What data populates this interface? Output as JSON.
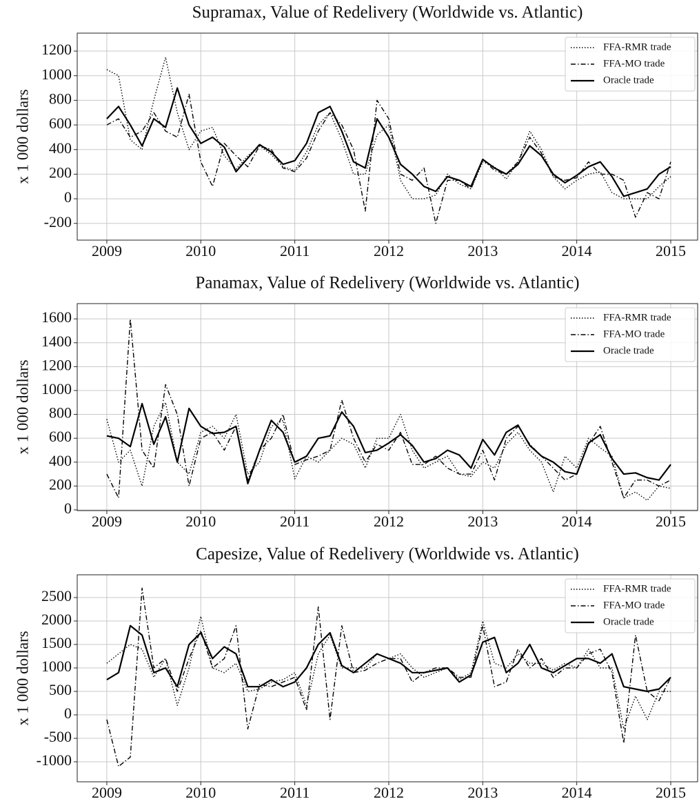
{
  "chart_data": [
    {
      "type": "line",
      "title": "Supramax, Value of Redelivery (Worldwide vs. Atlantic)",
      "y_label": "x 1 000 dollars",
      "x": [
        2009,
        2009.125,
        2009.25,
        2009.375,
        2009.5,
        2009.625,
        2009.75,
        2009.875,
        2010,
        2010.125,
        2010.25,
        2010.375,
        2010.5,
        2010.625,
        2010.75,
        2010.875,
        2011,
        2011.125,
        2011.25,
        2011.375,
        2011.5,
        2011.625,
        2011.75,
        2011.875,
        2012,
        2012.125,
        2012.25,
        2012.375,
        2012.5,
        2012.625,
        2012.75,
        2012.875,
        2013,
        2013.125,
        2013.25,
        2013.375,
        2013.5,
        2013.625,
        2013.75,
        2013.875,
        2014,
        2014.125,
        2014.25,
        2014.375,
        2014.5,
        2014.625,
        2014.75,
        2014.875,
        2015
      ],
      "series": [
        {
          "name": "FFA-RMR trade",
          "color": "#000000",
          "dash": "dotted",
          "values": [
            1050,
            1000,
            480,
            400,
            800,
            1150,
            700,
            400,
            550,
            580,
            350,
            240,
            350,
            430,
            360,
            260,
            230,
            380,
            600,
            700,
            480,
            200,
            200,
            520,
            600,
            150,
            0,
            0,
            30,
            200,
            120,
            80,
            300,
            260,
            160,
            300,
            550,
            400,
            180,
            80,
            150,
            200,
            220,
            50,
            0,
            0,
            0,
            100,
            180
          ]
        },
        {
          "name": "FFA-MO trade",
          "color": "#000000",
          "dash": "dashdot",
          "values": [
            600,
            650,
            500,
            550,
            700,
            550,
            500,
            850,
            300,
            100,
            450,
            350,
            260,
            430,
            400,
            250,
            220,
            330,
            550,
            700,
            600,
            400,
            -100,
            800,
            650,
            200,
            150,
            250,
            -200,
            150,
            150,
            80,
            320,
            230,
            200,
            300,
            500,
            370,
            180,
            150,
            170,
            300,
            200,
            200,
            150,
            -150,
            50,
            0,
            300
          ]
        },
        {
          "name": "Oracle trade",
          "color": "#000000",
          "dash": "solid",
          "values": [
            650,
            750,
            600,
            430,
            650,
            580,
            900,
            600,
            450,
            500,
            420,
            220,
            330,
            440,
            380,
            280,
            310,
            450,
            700,
            750,
            550,
            300,
            250,
            650,
            500,
            280,
            200,
            100,
            60,
            180,
            150,
            100,
            320,
            250,
            200,
            280,
            430,
            350,
            200,
            130,
            190,
            260,
            300,
            180,
            20,
            50,
            80,
            200,
            260
          ]
        }
      ],
      "xlim": [
        2008.685,
        2015.286
      ],
      "xticks": [
        2009,
        2010,
        2011,
        2012,
        2013,
        2014,
        2015
      ],
      "ylim": [
        -336,
        1346
      ],
      "yticks": [
        -200,
        0,
        200,
        400,
        600,
        800,
        1000,
        1200
      ],
      "grid": true,
      "legend": "upper-right"
    },
    {
      "type": "line",
      "title": "Panamax, Value of Redelivery (Worldwide vs. Atlantic)",
      "y_label": "x 1 000 dollars",
      "x": [
        2009,
        2009.125,
        2009.25,
        2009.375,
        2009.5,
        2009.625,
        2009.75,
        2009.875,
        2010,
        2010.125,
        2010.25,
        2010.375,
        2010.5,
        2010.625,
        2010.75,
        2010.875,
        2011,
        2011.125,
        2011.25,
        2011.375,
        2011.5,
        2011.625,
        2011.75,
        2011.875,
        2012,
        2012.125,
        2012.25,
        2012.375,
        2012.5,
        2012.625,
        2012.75,
        2012.875,
        2013,
        2013.125,
        2013.25,
        2013.375,
        2013.5,
        2013.625,
        2013.75,
        2013.875,
        2014,
        2014.125,
        2014.25,
        2014.375,
        2014.5,
        2014.625,
        2014.75,
        2014.875,
        2015
      ],
      "series": [
        {
          "name": "FFA-RMR trade",
          "color": "#000000",
          "dash": "dotted",
          "values": [
            760,
            400,
            500,
            200,
            700,
            900,
            400,
            300,
            650,
            700,
            600,
            800,
            300,
            400,
            700,
            750,
            260,
            450,
            400,
            500,
            600,
            550,
            350,
            600,
            600,
            800,
            500,
            350,
            400,
            450,
            300,
            280,
            400,
            350,
            550,
            650,
            500,
            400,
            150,
            450,
            350,
            600,
            520,
            450,
            100,
            150,
            80,
            200,
            180
          ]
        },
        {
          "name": "FFA-MO trade",
          "color": "#000000",
          "dash": "dashdot",
          "values": [
            300,
            100,
            1600,
            500,
            350,
            1050,
            800,
            200,
            600,
            650,
            500,
            700,
            250,
            500,
            600,
            800,
            380,
            420,
            450,
            500,
            920,
            600,
            400,
            550,
            500,
            650,
            380,
            380,
            450,
            350,
            300,
            300,
            500,
            250,
            600,
            700,
            550,
            450,
            350,
            250,
            300,
            550,
            700,
            400,
            100,
            250,
            250,
            200,
            250
          ]
        },
        {
          "name": "Oracle trade",
          "color": "#000000",
          "dash": "solid",
          "values": [
            620,
            600,
            530,
            890,
            550,
            780,
            400,
            850,
            700,
            640,
            650,
            700,
            220,
            500,
            750,
            650,
            400,
            450,
            600,
            620,
            820,
            700,
            480,
            500,
            560,
            630,
            540,
            400,
            430,
            500,
            460,
            350,
            590,
            460,
            650,
            710,
            540,
            450,
            400,
            320,
            300,
            560,
            630,
            430,
            300,
            310,
            270,
            250,
            380
          ]
        }
      ],
      "xlim": [
        2008.685,
        2015.286
      ],
      "xticks": [
        2009,
        2010,
        2011,
        2012,
        2013,
        2014,
        2015
      ],
      "ylim": [
        -6,
        1728
      ],
      "yticks": [
        0,
        200,
        400,
        600,
        800,
        1000,
        1200,
        1400,
        1600
      ],
      "grid": true,
      "legend": "upper-right"
    },
    {
      "type": "line",
      "title": "Capesize, Value of Redelivery (Worldwide vs. Atlantic)",
      "y_label": "x 1 000 dollars",
      "x": [
        2009,
        2009.125,
        2009.25,
        2009.375,
        2009.5,
        2009.625,
        2009.75,
        2009.875,
        2010,
        2010.125,
        2010.25,
        2010.375,
        2010.5,
        2010.625,
        2010.75,
        2010.875,
        2011,
        2011.125,
        2011.25,
        2011.375,
        2011.5,
        2011.625,
        2011.75,
        2011.875,
        2012,
        2012.125,
        2012.25,
        2012.375,
        2012.5,
        2012.625,
        2012.75,
        2012.875,
        2013,
        2013.125,
        2013.25,
        2013.375,
        2013.5,
        2013.625,
        2013.75,
        2013.875,
        2014,
        2014.125,
        2014.25,
        2014.375,
        2014.5,
        2014.625,
        2014.75,
        2014.875,
        2015
      ],
      "series": [
        {
          "name": "FFA-RMR trade",
          "color": "#000000",
          "dash": "dotted",
          "values": [
            1100,
            1300,
            1500,
            1400,
            800,
            1200,
            200,
            1000,
            2100,
            1000,
            900,
            1100,
            500,
            550,
            700,
            750,
            900,
            200,
            1300,
            1700,
            1000,
            1000,
            1000,
            1300,
            1200,
            1300,
            1000,
            800,
            900,
            1000,
            750,
            900,
            2000,
            1100,
            1000,
            1300,
            1100,
            1100,
            950,
            1100,
            1000,
            1400,
            1000,
            1000,
            -300,
            400,
            -100,
            500,
            500
          ]
        },
        {
          "name": "FFA-MO trade",
          "color": "#000000",
          "dash": "dashdot",
          "values": [
            -100,
            -1100,
            -900,
            2700,
            1000,
            1200,
            500,
            1200,
            1800,
            1000,
            1200,
            1900,
            -300,
            650,
            600,
            700,
            800,
            100,
            2300,
            -100,
            1900,
            900,
            950,
            1100,
            1200,
            1200,
            700,
            900,
            1000,
            1000,
            800,
            800,
            1900,
            600,
            700,
            1400,
            1000,
            1200,
            800,
            1000,
            1000,
            1300,
            1400,
            900,
            -600,
            1700,
            500,
            300,
            800
          ]
        },
        {
          "name": "Oracle trade",
          "color": "#000000",
          "dash": "solid",
          "values": [
            750,
            900,
            1900,
            1700,
            900,
            1000,
            600,
            1500,
            1750,
            1200,
            1450,
            1300,
            600,
            600,
            750,
            600,
            700,
            1000,
            1500,
            1750,
            1050,
            900,
            1100,
            1300,
            1200,
            1100,
            900,
            900,
            950,
            1000,
            700,
            850,
            1550,
            1650,
            900,
            1100,
            1500,
            1000,
            900,
            1050,
            1200,
            1200,
            1100,
            1300,
            600,
            550,
            500,
            550,
            800
          ]
        }
      ],
      "xlim": [
        2008.685,
        2015.286
      ],
      "xticks": [
        2009,
        2010,
        2011,
        2012,
        2013,
        2014,
        2015
      ],
      "ylim": [
        -1426,
        2985
      ],
      "yticks": [
        -1000,
        -500,
        0,
        500,
        1000,
        1500,
        2000,
        2500
      ],
      "grid": true,
      "legend": "upper-right"
    }
  ]
}
